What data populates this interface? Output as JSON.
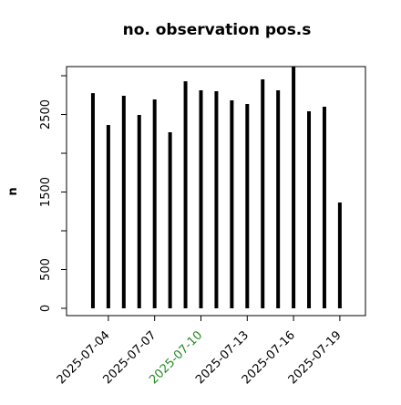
{
  "chart_data": {
    "type": "bar",
    "title": "no. observation pos.s",
    "y_label": "n",
    "x": [
      "2025-07-03",
      "2025-07-04",
      "2025-07-05",
      "2025-07-06",
      "2025-07-07",
      "2025-07-08",
      "2025-07-09",
      "2025-07-10",
      "2025-07-11",
      "2025-07-12",
      "2025-07-13",
      "2025-07-14",
      "2025-07-15",
      "2025-07-16",
      "2025-07-17",
      "2025-07-18",
      "2025-07-19"
    ],
    "values": [
      2776,
      2365,
      2741,
      2494,
      2694,
      2271,
      2929,
      2812,
      2800,
      2682,
      2635,
      2953,
      2812,
      3200,
      2541,
      2600,
      1365
    ],
    "color": "#000000",
    "xticks": [
      "2025-07-04",
      "2025-07-07",
      "2025-07-10",
      "2025-07-13",
      "2025-07-16",
      "2025-07-19"
    ],
    "highlight_xtick": "2025-07-10",
    "highlight_color": "#228b22",
    "ylim": [
      -94,
      3118
    ],
    "yticks": [
      0,
      500,
      {
        "value": 1000,
        "label": null
      },
      1500,
      {
        "value": 2000,
        "label": null
      },
      2500,
      {
        "value": 3000,
        "label": null
      }
    ]
  }
}
